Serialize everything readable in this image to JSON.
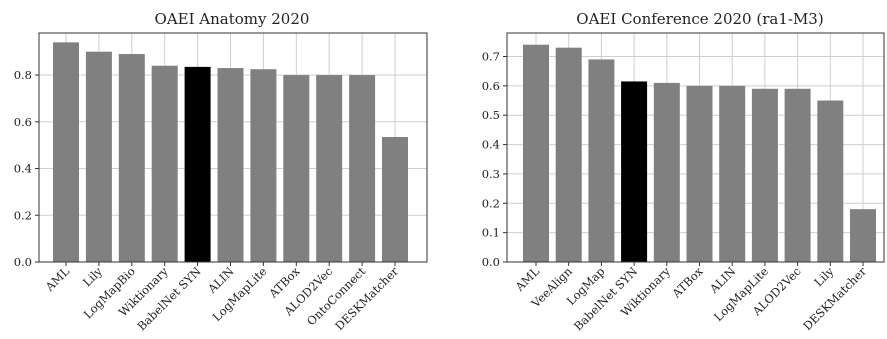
{
  "chart_data": [
    {
      "type": "bar",
      "title": "OAEI Anatomy 2020",
      "categories": [
        "AML",
        "Lily",
        "LogMapBio",
        "Wiktionary",
        "BabelNet SYN",
        "ALIN",
        "LogMapLite",
        "ATBox",
        "ALOD2Vec",
        "OntoConnect",
        "DESKMatcher"
      ],
      "values": [
        0.94,
        0.9,
        0.89,
        0.84,
        0.835,
        0.83,
        0.825,
        0.8,
        0.8,
        0.8,
        0.535
      ],
      "highlight": "BabelNet SYN",
      "ylim": [
        0,
        0.98
      ],
      "yticks": [
        0.0,
        0.2,
        0.4,
        0.6,
        0.8
      ],
      "ytick_labels": [
        "0.0",
        "0.2",
        "0.4",
        "0.6",
        "0.8"
      ],
      "grid": true,
      "xlabel": "",
      "ylabel": ""
    },
    {
      "type": "bar",
      "title": "OAEI Conference 2020 (ra1-M3)",
      "categories": [
        "AML",
        "VeeAlign",
        "LogMap",
        "BabelNet SYN",
        "Wiktionary",
        "ATBox",
        "ALIN",
        "LogMapLite",
        "ALOD2Vec",
        "Lily",
        "DESKMatcher"
      ],
      "values": [
        0.74,
        0.73,
        0.69,
        0.615,
        0.61,
        0.6,
        0.6,
        0.59,
        0.59,
        0.55,
        0.18
      ],
      "highlight": "BabelNet SYN",
      "ylim": [
        0,
        0.78
      ],
      "yticks": [
        0.0,
        0.1,
        0.2,
        0.3,
        0.4,
        0.5,
        0.6,
        0.7
      ],
      "ytick_labels": [
        "0.0",
        "0.1",
        "0.2",
        "0.3",
        "0.4",
        "0.5",
        "0.6",
        "0.7"
      ],
      "grid": true,
      "xlabel": "",
      "ylabel": ""
    }
  ],
  "colors": {
    "bar": "#808080",
    "highlight_bar": "#000000",
    "grid": "#cfcfcf",
    "axis": "#333333"
  }
}
